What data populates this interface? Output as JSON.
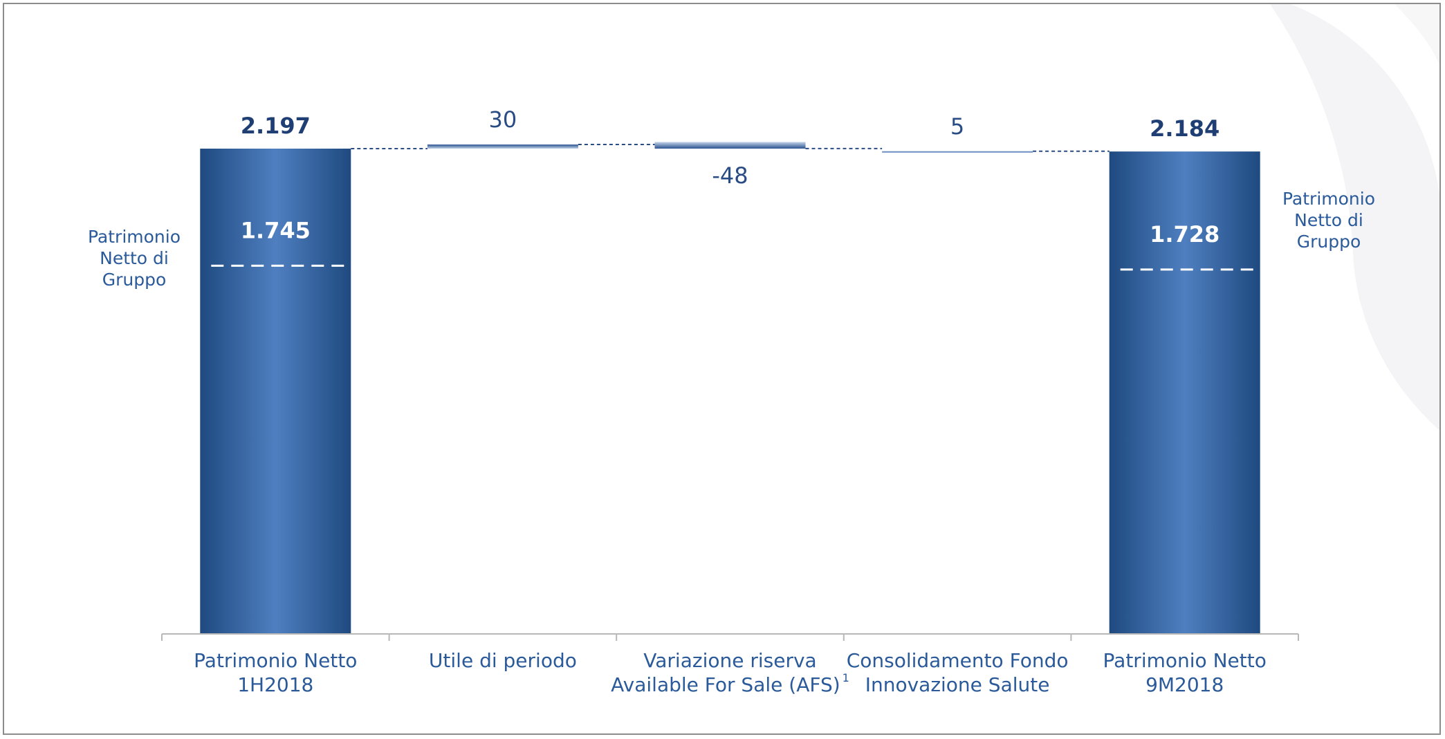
{
  "chart_data": {
    "type": "bar",
    "subtype": "waterfall",
    "categories": [
      {
        "lines": [
          "Patrimonio Netto",
          "1H2018"
        ],
        "superscript": ""
      },
      {
        "lines": [
          "Utile di periodo"
        ],
        "superscript": ""
      },
      {
        "lines": [
          "Variazione riserva",
          "Available For Sale (AFS)"
        ],
        "superscript": "1"
      },
      {
        "lines": [
          "Consolidamento Fondo",
          "Innovazione Salute"
        ],
        "superscript": ""
      },
      {
        "lines": [
          "Patrimonio Netto",
          "9M2018"
        ],
        "superscript": ""
      }
    ],
    "bars": [
      {
        "kind": "total",
        "value": 2197,
        "label": "2.197",
        "group_value": 1745,
        "group_label": "1.745"
      },
      {
        "kind": "delta",
        "value": 30,
        "label": "30"
      },
      {
        "kind": "delta",
        "value": -48,
        "label": "-48"
      },
      {
        "kind": "delta",
        "value": 5,
        "label": "5"
      },
      {
        "kind": "total",
        "value": 2184,
        "label": "2.184",
        "group_value": 1728,
        "group_label": "1.728"
      }
    ],
    "side_labels": {
      "left": [
        "Patrimonio",
        "Netto di",
        "Gruppo"
      ],
      "right": [
        "Patrimonio",
        "Netto di",
        "Gruppo"
      ]
    },
    "ylim": [
      0,
      2230
    ],
    "grid": false,
    "legend": "none"
  },
  "colors": {
    "bar_dark": "#1f4a80",
    "bar_light": "#4f7fc0",
    "delta_light": "#c3d3e8",
    "text_blue": "#2a5a9a",
    "axis": "#b8b8b8",
    "connector": "#2a4c84",
    "watermark": "#f4f4f6"
  }
}
